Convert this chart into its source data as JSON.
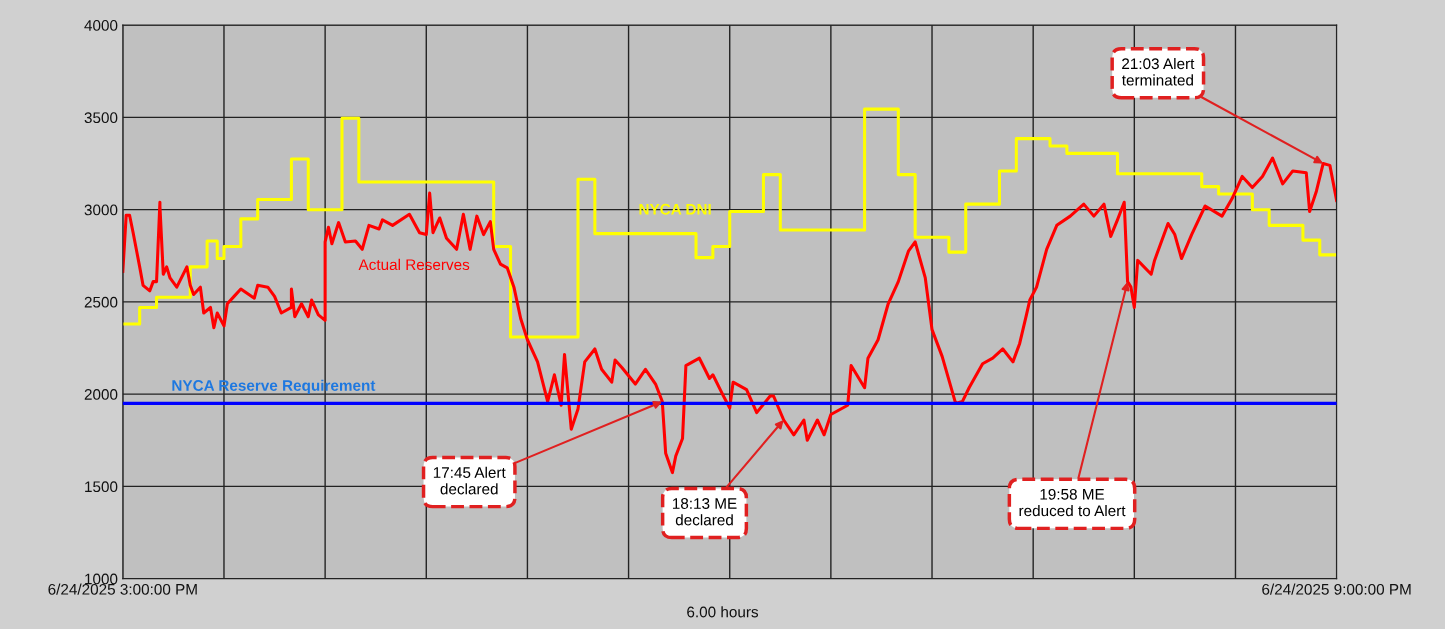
{
  "chart_data": {
    "type": "line",
    "series": [
      {
        "name": "NYCA DNI",
        "type": "step",
        "color": "#ffff00",
        "x": [
          "2025-06-24T15:00",
          "2025-06-24T15:05",
          "2025-06-24T15:10",
          "2025-06-24T15:20",
          "2025-06-24T15:25",
          "2025-06-24T15:28",
          "2025-06-24T15:30",
          "2025-06-24T15:35",
          "2025-06-24T15:40",
          "2025-06-24T15:50",
          "2025-06-24T15:55",
          "2025-06-24T16:05",
          "2025-06-24T16:10",
          "2025-06-24T16:50",
          "2025-06-24T16:55",
          "2025-06-24T17:15",
          "2025-06-24T17:20",
          "2025-06-24T17:50",
          "2025-06-24T17:55",
          "2025-06-24T18:00",
          "2025-06-24T18:10",
          "2025-06-24T18:15",
          "2025-06-24T18:40",
          "2025-06-24T18:50",
          "2025-06-24T18:55",
          "2025-06-24T19:05",
          "2025-06-24T19:10",
          "2025-06-24T19:20",
          "2025-06-24T19:25",
          "2025-06-24T19:35",
          "2025-06-24T19:40",
          "2025-06-24T19:55",
          "2025-06-24T20:20",
          "2025-06-24T20:25",
          "2025-06-24T20:35",
          "2025-06-24T20:40",
          "2025-06-24T20:50",
          "2025-06-24T20:55",
          "2025-06-24T21:00"
        ],
        "values": [
          2380,
          2470,
          2525,
          2690,
          2830,
          2735,
          2800,
          2950,
          3055,
          3275,
          3000,
          3495,
          3150,
          2800,
          2310,
          3165,
          2870,
          2740,
          2800,
          2990,
          3190,
          2890,
          3545,
          3190,
          2850,
          2770,
          3030,
          3210,
          3385,
          3345,
          3305,
          3195,
          3125,
          3085,
          3000,
          2915,
          2835,
          2755,
          2755
        ]
      },
      {
        "name": "Actual Reserves",
        "color": "#ff0000",
        "x": [
          "2025-06-24T15:00",
          "2025-06-24T15:01",
          "2025-06-24T15:02",
          "2025-06-24T15:03",
          "2025-06-24T15:05",
          "2025-06-24T15:06",
          "2025-06-24T15:08",
          "2025-06-24T15:09",
          "2025-06-24T15:10",
          "2025-06-24T15:11",
          "2025-06-24T15:11",
          "2025-06-24T15:12",
          "2025-06-24T15:13",
          "2025-06-24T15:14",
          "2025-06-24T15:16",
          "2025-06-24T15:19",
          "2025-06-24T15:20",
          "2025-06-24T15:21",
          "2025-06-24T15:23",
          "2025-06-24T15:24",
          "2025-06-24T15:26",
          "2025-06-24T15:27",
          "2025-06-24T15:28",
          "2025-06-24T15:30",
          "2025-06-24T15:31",
          "2025-06-24T15:33",
          "2025-06-24T15:35",
          "2025-06-24T15:39",
          "2025-06-24T15:40",
          "2025-06-24T15:43",
          "2025-06-24T15:45",
          "2025-06-24T15:47",
          "2025-06-24T15:50",
          "2025-06-24T15:50",
          "2025-06-24T15:51",
          "2025-06-24T15:53",
          "2025-06-24T15:55",
          "2025-06-24T15:56",
          "2025-06-24T15:58",
          "2025-06-24T16:00",
          "2025-06-24T16:00",
          "2025-06-24T16:01",
          "2025-06-24T16:02",
          "2025-06-24T16:04",
          "2025-06-24T16:06",
          "2025-06-24T16:09",
          "2025-06-24T16:11",
          "2025-06-24T16:13",
          "2025-06-24T16:16",
          "2025-06-24T16:17",
          "2025-06-24T16:20",
          "2025-06-24T16:25",
          "2025-06-24T16:28",
          "2025-06-24T16:30",
          "2025-06-24T16:31",
          "2025-06-24T16:32",
          "2025-06-24T16:34",
          "2025-06-24T16:36",
          "2025-06-24T16:39",
          "2025-06-24T16:41",
          "2025-06-24T16:43",
          "2025-06-24T16:45",
          "2025-06-24T16:47",
          "2025-06-24T16:49",
          "2025-06-24T16:50",
          "2025-06-24T16:52",
          "2025-06-24T16:54",
          "2025-06-24T16:56",
          "2025-06-24T16:58",
          "2025-06-24T17:00",
          "2025-06-24T17:03",
          "2025-06-24T17:06",
          "2025-06-24T17:08",
          "2025-06-24T17:10",
          "2025-06-24T17:11",
          "2025-06-24T17:13",
          "2025-06-24T17:15",
          "2025-06-24T17:17",
          "2025-06-24T17:20",
          "2025-06-24T17:22",
          "2025-06-24T17:25",
          "2025-06-24T17:26",
          "2025-06-24T17:28",
          "2025-06-24T17:32",
          "2025-06-24T17:35",
          "2025-06-24T17:38",
          "2025-06-24T17:40",
          "2025-06-24T17:41",
          "2025-06-24T17:43",
          "2025-06-24T17:44",
          "2025-06-24T17:46",
          "2025-06-24T17:47",
          "2025-06-24T17:51",
          "2025-06-24T17:54",
          "2025-06-24T17:55",
          "2025-06-24T17:58",
          "2025-06-24T18:00",
          "2025-06-24T18:01",
          "2025-06-24T18:05",
          "2025-06-24T18:08",
          "2025-06-24T18:12",
          "2025-06-24T18:13",
          "2025-06-24T18:16",
          "2025-06-24T18:19",
          "2025-06-24T18:22",
          "2025-06-24T18:23",
          "2025-06-24T18:26",
          "2025-06-24T18:28",
          "2025-06-24T18:30",
          "2025-06-24T18:35",
          "2025-06-24T18:36",
          "2025-06-24T18:40",
          "2025-06-24T18:41",
          "2025-06-24T18:44",
          "2025-06-24T18:47",
          "2025-06-24T18:50",
          "2025-06-24T18:53",
          "2025-06-24T18:55",
          "2025-06-24T18:58",
          "2025-06-24T19:00",
          "2025-06-24T19:03",
          "2025-06-24T19:07",
          "2025-06-24T19:09",
          "2025-06-24T19:11",
          "2025-06-24T19:15",
          "2025-06-24T19:18",
          "2025-06-24T19:21",
          "2025-06-24T19:24",
          "2025-06-24T19:26",
          "2025-06-24T19:28",
          "2025-06-24T19:29",
          "2025-06-24T19:31",
          "2025-06-24T19:34",
          "2025-06-24T19:37",
          "2025-06-24T19:41",
          "2025-06-24T19:45",
          "2025-06-24T19:48",
          "2025-06-24T19:51",
          "2025-06-24T19:53",
          "2025-06-24T19:55",
          "2025-06-24T19:57",
          "2025-06-24T19:58",
          "2025-06-24T19:59",
          "2025-06-24T20:00",
          "2025-06-24T20:01",
          "2025-06-24T20:05",
          "2025-06-24T20:06",
          "2025-06-24T20:10",
          "2025-06-24T20:12",
          "2025-06-24T20:14",
          "2025-06-24T20:17",
          "2025-06-24T20:21",
          "2025-06-24T20:26",
          "2025-06-24T20:29",
          "2025-06-24T20:32",
          "2025-06-24T20:35",
          "2025-06-24T20:38",
          "2025-06-24T20:41",
          "2025-06-24T20:44",
          "2025-06-24T20:47",
          "2025-06-24T20:51",
          "2025-06-24T20:52",
          "2025-06-24T20:54",
          "2025-06-24T20:56",
          "2025-06-24T20:58",
          "2025-06-24T21:00"
        ],
        "values": [
          2665,
          2970,
          2970,
          2880,
          2690,
          2590,
          2560,
          2610,
          2610,
          3040,
          3020,
          2650,
          2690,
          2630,
          2580,
          2690,
          2590,
          2540,
          2580,
          2440,
          2470,
          2360,
          2440,
          2370,
          2490,
          2530,
          2570,
          2520,
          2590,
          2580,
          2530,
          2440,
          2470,
          2570,
          2420,
          2490,
          2420,
          2510,
          2430,
          2400,
          2825,
          2905,
          2815,
          2930,
          2825,
          2830,
          2785,
          2915,
          2895,
          2945,
          2915,
          2975,
          2875,
          2865,
          3090,
          2875,
          2955,
          2845,
          2785,
          2975,
          2785,
          2965,
          2865,
          2935,
          2785,
          2705,
          2685,
          2580,
          2410,
          2295,
          2175,
          1960,
          2105,
          1940,
          2215,
          1810,
          1920,
          2175,
          2245,
          2135,
          2065,
          2185,
          2145,
          2055,
          2135,
          2055,
          1960,
          1680,
          1575,
          1665,
          1760,
          2155,
          2195,
          2085,
          2105,
          1995,
          1925,
          2065,
          2025,
          1900,
          1990,
          1990,
          1860,
          1780,
          1860,
          1750,
          1860,
          1780,
          1890,
          1940,
          2155,
          2035,
          2195,
          2295,
          2490,
          2610,
          2775,
          2825,
          2630,
          2350,
          2205,
          1950,
          1960,
          2035,
          2165,
          2195,
          2245,
          2175,
          2275,
          2430,
          2510,
          2580,
          2785,
          2915,
          2965,
          3030,
          2965,
          3030,
          2855,
          2945,
          3040,
          2610,
          2580,
          2470,
          2725,
          2650,
          2725,
          2925,
          2865,
          2735,
          2865,
          3020,
          2965,
          3060,
          3180,
          3120,
          3180,
          3280,
          3140,
          3210,
          3200,
          2990,
          3100,
          3250,
          3240,
          3050
        ]
      }
    ],
    "ref_lines": [
      {
        "axis": "y",
        "value": 1950,
        "label": "NYCA Reserve Requirement",
        "color": "#0000ff"
      }
    ],
    "annotations": [
      {
        "text": "17:45 Alert\ndeclared",
        "x": "2025-06-24T17:40",
        "y": 1960
      },
      {
        "text": "18:13 ME\ndeclared",
        "x": "2025-06-24T18:16",
        "y": 1860
      },
      {
        "text": "19:58 ME\nreduced to Alert",
        "x": "2025-06-24T19:58",
        "y": 2610
      },
      {
        "text": "21:03 Alert\nterminated",
        "x": "2025-06-24T20:56",
        "y": 3250
      },
      "6.00 hours"
    ],
    "xlim": [
      "2025-06-24T15:00",
      "2025-06-24T21:00"
    ],
    "ylim": [
      1000,
      4000
    ],
    "xticks": [
      {
        "value": "2025-06-24T15:00",
        "label": "6/24/2025 3:00:00 PM"
      },
      {
        "value": "2025-06-24T15:30",
        "label": null
      },
      {
        "value": "2025-06-24T16:00",
        "label": null
      },
      {
        "value": "2025-06-24T16:30",
        "label": null
      },
      {
        "value": "2025-06-24T17:00",
        "label": null
      },
      {
        "value": "2025-06-24T17:30",
        "label": null
      },
      {
        "value": "2025-06-24T18:00",
        "label": null
      },
      {
        "value": "2025-06-24T18:30",
        "label": null
      },
      {
        "value": "2025-06-24T19:00",
        "label": null
      },
      {
        "value": "2025-06-24T19:30",
        "label": null
      },
      {
        "value": "2025-06-24T20:00",
        "label": null
      },
      {
        "value": "2025-06-24T20:30",
        "label": null
      },
      {
        "value": "2025-06-24T21:00",
        "label": "6/24/2025 9:00:00 PM"
      }
    ],
    "yticks": [
      1000,
      1500,
      2000,
      2500,
      3000,
      3500,
      4000
    ],
    "grid": true,
    "legend": false,
    "marker": "none",
    "line_style": "solid"
  }
}
